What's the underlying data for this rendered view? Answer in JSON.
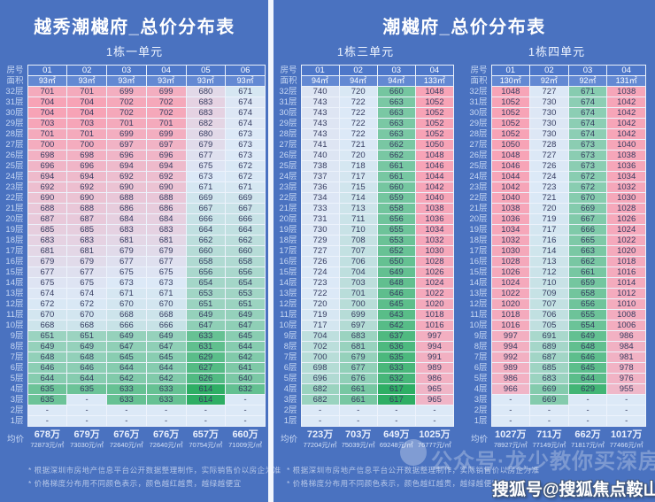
{
  "colors": {
    "background": "#4a72c0",
    "divider": "#f2f6fd",
    "header_row_fill": "#4d77c9",
    "area_row_fill": "#6389d3",
    "scale_high_red": "#f7a3b6",
    "scale_mid": "#dce9f7",
    "scale_low_green": "#2eae64",
    "cell_text": "#363c60",
    "row_label_text": "#c8d8f4",
    "title_text": "#ffffff"
  },
  "labels": {
    "room": "房号",
    "area": "面积",
    "avg": "均价",
    "dash": "-"
  },
  "floors": [
    "32层",
    "31层",
    "30层",
    "29层",
    "28层",
    "27层",
    "26层",
    "25层",
    "24层",
    "23层",
    "22层",
    "21层",
    "20层",
    "19层",
    "18层",
    "17层",
    "16层",
    "15层",
    "14层",
    "13层",
    "12层",
    "11层",
    "10层",
    "9层",
    "8层",
    "7层",
    "6层",
    "5层",
    "4层",
    "3层",
    "2层",
    "1层"
  ],
  "panels": [
    {
      "title": "越秀潮樾府_总价分布表",
      "footnotes": [
        "* 根据深圳市房地产信息平台公开数据整理制作，实际销售价以房企为准",
        "* 价格梯度分布用不同颜色表示，颜色越红越贵，越绿越便宜"
      ]
    },
    {
      "title": "潮樾府_总价分布表",
      "footnotes": [
        "* 根据深圳市房地产信息平台公开数据整理制作，实际销售价以房企为准",
        "* 价格梯度分布用不同颜色表示，颜色越红越贵，越绿越便宜"
      ]
    }
  ],
  "watermark": {
    "badge_icon": "circle-badge",
    "line1": "公众号·龙少教你买深房",
    "line2": "搜狐号@搜狐焦点鞍山站"
  },
  "chart_data": [
    {
      "type": "table",
      "subtitle": "1栋一单元",
      "columns": [
        "01",
        "02",
        "03",
        "04",
        "05",
        "06"
      ],
      "areas": [
        "93㎡",
        "93㎡",
        "93㎡",
        "93㎡",
        "93㎡",
        "93㎡"
      ],
      "rows": [
        [
          701,
          701,
          699,
          699,
          680,
          671
        ],
        [
          704,
          704,
          702,
          702,
          683,
          674
        ],
        [
          704,
          704,
          702,
          702,
          683,
          674
        ],
        [
          703,
          703,
          701,
          701,
          682,
          674
        ],
        [
          701,
          701,
          699,
          699,
          680,
          673
        ],
        [
          700,
          700,
          697,
          697,
          679,
          673
        ],
        [
          698,
          698,
          696,
          696,
          677,
          673
        ],
        [
          696,
          696,
          694,
          694,
          675,
          672
        ],
        [
          694,
          694,
          692,
          692,
          673,
          672
        ],
        [
          692,
          692,
          690,
          690,
          671,
          671
        ],
        [
          690,
          690,
          688,
          688,
          669,
          669
        ],
        [
          688,
          688,
          686,
          686,
          667,
          667
        ],
        [
          687,
          687,
          684,
          684,
          666,
          666
        ],
        [
          685,
          685,
          683,
          683,
          664,
          664
        ],
        [
          683,
          683,
          681,
          681,
          662,
          662
        ],
        [
          681,
          681,
          679,
          679,
          660,
          660
        ],
        [
          679,
          679,
          677,
          677,
          658,
          658
        ],
        [
          677,
          677,
          675,
          675,
          656,
          656
        ],
        [
          675,
          675,
          673,
          673,
          654,
          654
        ],
        [
          674,
          674,
          671,
          671,
          653,
          653
        ],
        [
          672,
          672,
          670,
          670,
          651,
          651
        ],
        [
          670,
          670,
          668,
          668,
          649,
          649
        ],
        [
          668,
          668,
          666,
          666,
          647,
          647
        ],
        [
          651,
          651,
          649,
          649,
          633,
          645
        ],
        [
          649,
          649,
          647,
          647,
          631,
          644
        ],
        [
          648,
          648,
          645,
          645,
          629,
          642
        ],
        [
          646,
          646,
          644,
          644,
          627,
          641
        ],
        [
          644,
          644,
          642,
          642,
          626,
          640
        ],
        [
          635,
          635,
          633,
          633,
          614,
          632
        ],
        [
          635,
          "-",
          633,
          633,
          614,
          "-"
        ],
        [
          "-",
          "-",
          "-",
          "-",
          "-",
          "-"
        ],
        [
          "-",
          "-",
          "-",
          "-",
          "-",
          "-"
        ]
      ],
      "avg": [
        {
          "total": "678万",
          "per_sqm": "72873元/㎡"
        },
        {
          "total": "679万",
          "per_sqm": "73030元/㎡"
        },
        {
          "total": "676万",
          "per_sqm": "72640元/㎡"
        },
        {
          "total": "676万",
          "per_sqm": "72640元/㎡"
        },
        {
          "total": "657万",
          "per_sqm": "70754元/㎡"
        },
        {
          "total": "660万",
          "per_sqm": "71009元/㎡"
        }
      ]
    },
    {
      "type": "table",
      "subtitle": "1栋三单元",
      "columns": [
        "01",
        "02",
        "03",
        "04"
      ],
      "areas": [
        "94㎡",
        "94㎡",
        "94㎡",
        "133㎡"
      ],
      "rows": [
        [
          740,
          720,
          660,
          1048
        ],
        [
          743,
          722,
          663,
          1052
        ],
        [
          743,
          722,
          663,
          1052
        ],
        [
          743,
          722,
          663,
          1052
        ],
        [
          743,
          722,
          663,
          1052
        ],
        [
          741,
          721,
          662,
          1050
        ],
        [
          740,
          720,
          662,
          1048
        ],
        [
          738,
          718,
          661,
          1046
        ],
        [
          737,
          717,
          661,
          1044
        ],
        [
          736,
          715,
          660,
          1042
        ],
        [
          734,
          714,
          659,
          1040
        ],
        [
          733,
          713,
          658,
          1038
        ],
        [
          731,
          711,
          656,
          1036
        ],
        [
          730,
          710,
          655,
          1034
        ],
        [
          729,
          708,
          653,
          1032
        ],
        [
          727,
          707,
          652,
          1030
        ],
        [
          726,
          706,
          650,
          1028
        ],
        [
          724,
          704,
          649,
          1026
        ],
        [
          723,
          703,
          648,
          1024
        ],
        [
          722,
          701,
          646,
          1022
        ],
        [
          720,
          700,
          645,
          1020
        ],
        [
          719,
          699,
          643,
          1018
        ],
        [
          717,
          697,
          642,
          1016
        ],
        [
          704,
          683,
          637,
          997
        ],
        [
          702,
          681,
          636,
          994
        ],
        [
          700,
          679,
          635,
          991
        ],
        [
          698,
          677,
          633,
          989
        ],
        [
          696,
          676,
          632,
          986
        ],
        [
          682,
          661,
          617,
          965
        ],
        [
          682,
          661,
          617,
          965
        ],
        [
          "-",
          "-",
          "-",
          "-"
        ],
        [
          "-",
          "-",
          "-",
          "-"
        ]
      ],
      "avg": [
        {
          "total": "723万",
          "per_sqm": "77204元/㎡"
        },
        {
          "total": "703万",
          "per_sqm": "75039元/㎡"
        },
        {
          "total": "649万",
          "per_sqm": "69248元/㎡"
        },
        {
          "total": "1025万",
          "per_sqm": "76777元/㎡"
        }
      ]
    },
    {
      "type": "table",
      "subtitle": "1栋四单元",
      "columns": [
        "01",
        "02",
        "03",
        "04"
      ],
      "areas": [
        "130㎡",
        "92㎡",
        "92㎡",
        "131㎡"
      ],
      "rows": [
        [
          1048,
          727,
          671,
          1038
        ],
        [
          1052,
          730,
          674,
          1042
        ],
        [
          1052,
          730,
          674,
          1042
        ],
        [
          1052,
          730,
          674,
          1042
        ],
        [
          1052,
          730,
          674,
          1042
        ],
        [
          1050,
          728,
          673,
          1040
        ],
        [
          1048,
          727,
          673,
          1038
        ],
        [
          1046,
          726,
          673,
          1036
        ],
        [
          1044,
          724,
          672,
          1034
        ],
        [
          1042,
          723,
          672,
          1032
        ],
        [
          1040,
          721,
          670,
          1030
        ],
        [
          1038,
          720,
          669,
          1028
        ],
        [
          1036,
          719,
          667,
          1026
        ],
        [
          1034,
          717,
          666,
          1024
        ],
        [
          1032,
          716,
          665,
          1022
        ],
        [
          1030,
          714,
          663,
          1020
        ],
        [
          1028,
          713,
          662,
          1018
        ],
        [
          1026,
          712,
          661,
          1016
        ],
        [
          1024,
          710,
          659,
          1014
        ],
        [
          1022,
          709,
          658,
          1012
        ],
        [
          1020,
          707,
          656,
          1010
        ],
        [
          1018,
          706,
          655,
          1008
        ],
        [
          1016,
          705,
          654,
          1006
        ],
        [
          997,
          691,
          649,
          986
        ],
        [
          994,
          689,
          648,
          984
        ],
        [
          992,
          687,
          646,
          981
        ],
        [
          989,
          685,
          645,
          978
        ],
        [
          986,
          683,
          644,
          976
        ],
        [
          966,
          669,
          629,
          955
        ],
        [
          "-",
          669,
          "-",
          "-"
        ],
        [
          "-",
          "-",
          "-",
          "-"
        ],
        [
          "-",
          "-",
          "-",
          "-"
        ]
      ],
      "avg": [
        {
          "total": "1027万",
          "per_sqm": "78927元/㎡"
        },
        {
          "total": "711万",
          "per_sqm": "77149元/㎡"
        },
        {
          "total": "662万",
          "per_sqm": "71817元/㎡"
        },
        {
          "total": "1017万",
          "per_sqm": "77466元/㎡"
        }
      ]
    }
  ]
}
